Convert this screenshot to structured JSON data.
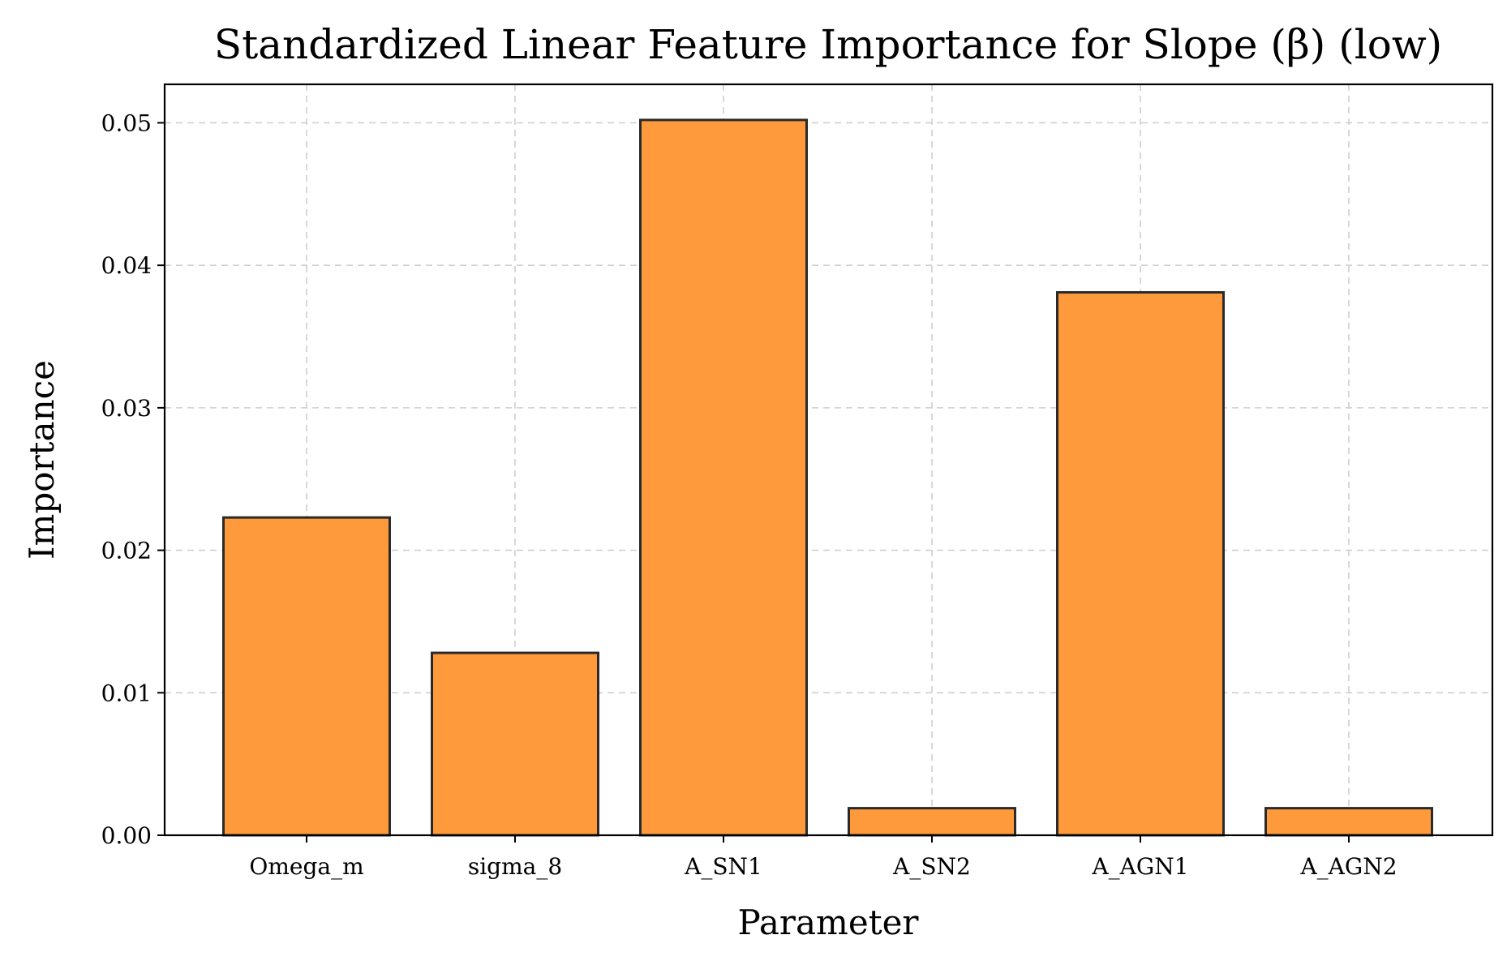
{
  "chart_data": {
    "type": "bar",
    "title": "Standardized Linear Feature Importance for Slope (β) (low)",
    "xlabel": "Parameter",
    "ylabel": "Importance",
    "categories": [
      "Omega_m",
      "sigma_8",
      "A_SN1",
      "A_SN2",
      "A_AGN1",
      "A_AGN2"
    ],
    "values": [
      0.0223,
      0.0128,
      0.0502,
      0.0019,
      0.0381,
      0.0019
    ],
    "ylim": [
      0,
      0.0527
    ],
    "yticks": [
      0.0,
      0.01,
      0.02,
      0.03,
      0.04,
      0.05
    ],
    "ytick_labels": [
      "0.00",
      "0.01",
      "0.02",
      "0.03",
      "0.04",
      "0.05"
    ],
    "grid": true,
    "bar_color": "#ff9a3c",
    "edge_color": "#2a2a2a"
  }
}
